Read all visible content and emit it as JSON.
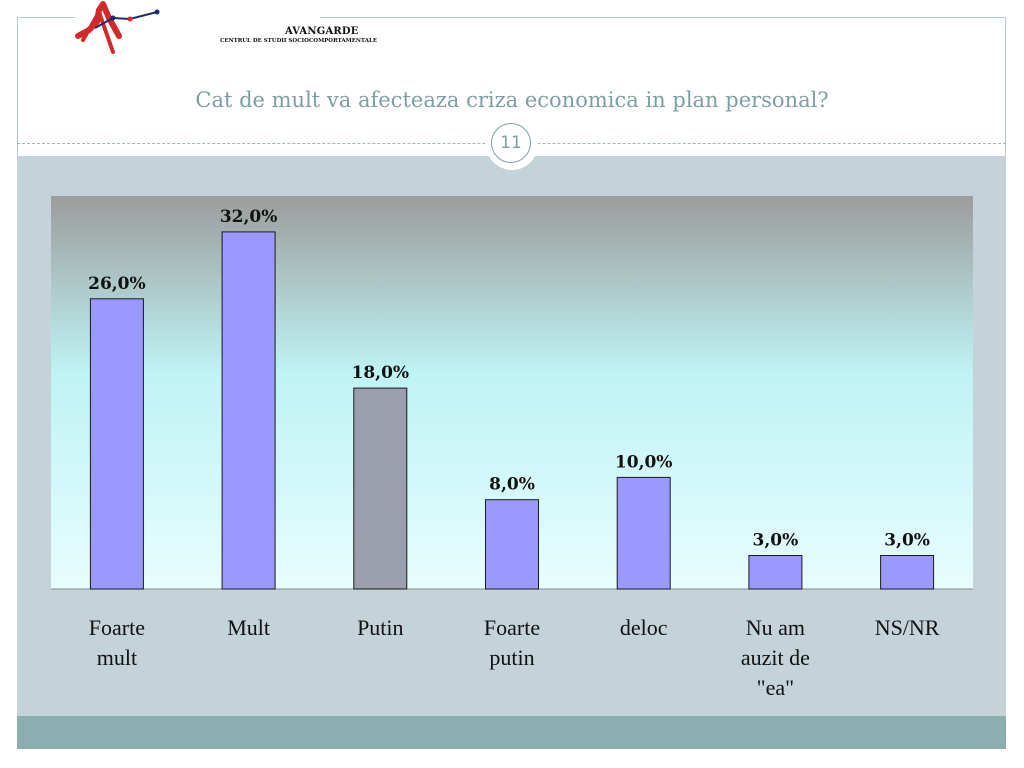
{
  "logo": {
    "name": "AVANGARDE",
    "subtitle": "CENTRUL DE STUDII SOCIOCOMPORTAMENTALE"
  },
  "title": "Cat de mult va afecteaza criza economica in plan personal?",
  "page_number": "11",
  "colors": {
    "bar_default": "#9999ff",
    "bar_highlight": "#9b9ead",
    "title_text": "#7e9ea5"
  },
  "chart_data": {
    "type": "bar",
    "categories": [
      [
        "Foarte",
        "mult"
      ],
      [
        "Mult"
      ],
      [
        "Putin"
      ],
      [
        "Foarte",
        "putin"
      ],
      [
        "deloc"
      ],
      [
        "Nu am",
        "auzit de",
        "\"ea\""
      ],
      [
        "NS/NR"
      ]
    ],
    "values": [
      26.0,
      32.0,
      18.0,
      8.0,
      10.0,
      3.0,
      3.0
    ],
    "value_labels": [
      "26,0%",
      "32,0%",
      "18,0%",
      "8,0%",
      "10,0%",
      "3,0%",
      "3,0%"
    ],
    "highlighted_index": 2,
    "ylim": [
      0,
      35
    ],
    "grid": false
  }
}
